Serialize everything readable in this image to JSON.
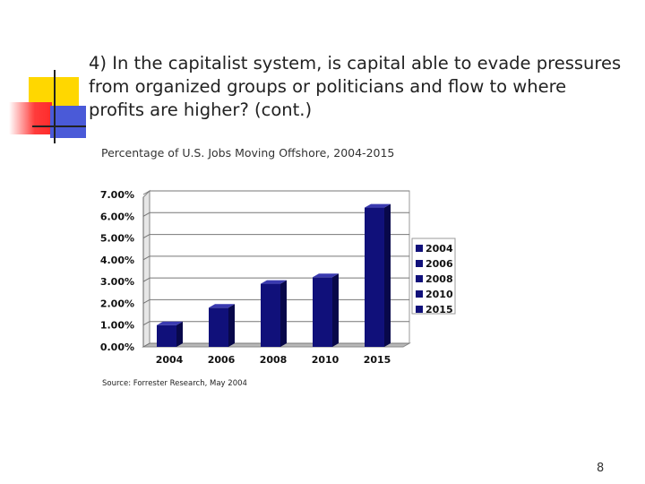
{
  "slide": {
    "title": "4) In the capitalist system, is capital able to evade pressures from organized groups or politicians and flow to where profits are higher? (cont.)",
    "source": "Source: Forrester Research, May 2004",
    "page_number": "8"
  },
  "colors": {
    "bar": "#10107a",
    "bar_side": "#08084a",
    "bar_top": "#3a3ab0",
    "deco_yellow": "#ffd700",
    "deco_red": "#ff2a2a",
    "deco_blue": "#4a5ad8"
  },
  "chart_data": {
    "type": "bar",
    "title": "Percentage of U.S. Jobs Moving Offshore, 2004-2015",
    "categories": [
      "2004",
      "2006",
      "2008",
      "2010",
      "2015"
    ],
    "values": [
      1.0,
      1.8,
      2.9,
      3.2,
      6.4
    ],
    "ylim": [
      0,
      7
    ],
    "yticks": [
      "0.00%",
      "1.00%",
      "2.00%",
      "3.00%",
      "4.00%",
      "5.00%",
      "6.00%",
      "7.00%"
    ],
    "xlabel": "",
    "ylabel": "",
    "grid": true,
    "legend": {
      "position": "right",
      "entries": [
        "2004",
        "2006",
        "2008",
        "2010",
        "2015"
      ]
    }
  }
}
